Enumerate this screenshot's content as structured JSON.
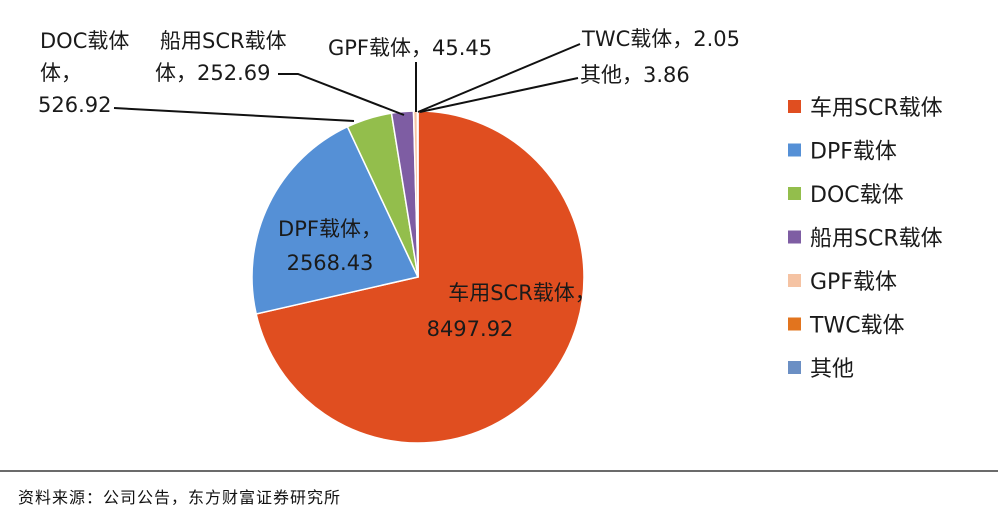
{
  "chart_data": {
    "type": "pie",
    "slices": [
      {
        "name": "车用SCR载体",
        "value": 8497.92,
        "color": "#E04E20",
        "label": [
          "车用SCR载体，",
          "8497.92"
        ]
      },
      {
        "name": "DPF载体",
        "value": 2568.43,
        "color": "#5590D6",
        "label": [
          "DPF载体，",
          "2568.43"
        ]
      },
      {
        "name": "DOC载体",
        "value": 526.92,
        "color": "#93BE4C",
        "label": [
          "DOC载体",
          "体，",
          "526.92"
        ]
      },
      {
        "name": "船用SCR载体",
        "value": 252.69,
        "color": "#7E5DA3",
        "label": [
          "船用SCR载体",
          "体，252.69"
        ]
      },
      {
        "name": "GPF载体",
        "value": 45.45,
        "color": "#F5C3A3",
        "label": [
          "GPF载体，45.45"
        ]
      },
      {
        "name": "TWC载体",
        "value": 2.05,
        "color": "#E2741E",
        "label": [
          "TWC载体，2.05"
        ]
      },
      {
        "name": "其他",
        "value": 3.86,
        "color": "#6B8FC4",
        "label": [
          "其他，3.86"
        ]
      }
    ],
    "legend_position": "right"
  },
  "source_text": "资料来源：公司公告，东方财富证券研究所"
}
